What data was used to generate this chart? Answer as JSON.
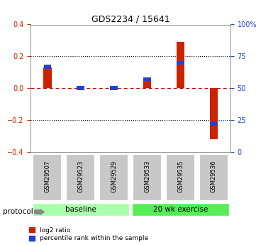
{
  "title": "GDS2234 / 15641",
  "samples": [
    "GSM29507",
    "GSM29523",
    "GSM29529",
    "GSM29533",
    "GSM29535",
    "GSM29536"
  ],
  "log2_ratio": [
    0.13,
    0.0,
    0.0,
    0.07,
    0.29,
    -0.32
  ],
  "percentile_rank": [
    0.67,
    0.5,
    0.5,
    0.57,
    0.7,
    0.22
  ],
  "ylim": [
    -0.4,
    0.4
  ],
  "yticks_left": [
    -0.4,
    -0.2,
    0.0,
    0.2,
    0.4
  ],
  "yticks_right": [
    0,
    25,
    50,
    75,
    100
  ],
  "groups": [
    {
      "label": "baseline",
      "start": 0,
      "end": 2,
      "color": "#aaffaa"
    },
    {
      "label": "20 wk exercise",
      "start": 3,
      "end": 5,
      "color": "#55ee55"
    }
  ],
  "bar_color_red": "#cc2200",
  "bar_color_blue": "#2244cc",
  "axis_label_color_left": "#cc2200",
  "axis_label_color_right": "#2244cc",
  "plot_bg_color": "#ffffff",
  "tick_box_color": "#c8c8c8",
  "dotted_line_color": "#000000",
  "zero_line_color": "#cc0000",
  "legend_red_label": "log2 ratio",
  "legend_blue_label": "percentile rank within the sample",
  "bar_width": 0.25,
  "protocol_label": "protocol"
}
